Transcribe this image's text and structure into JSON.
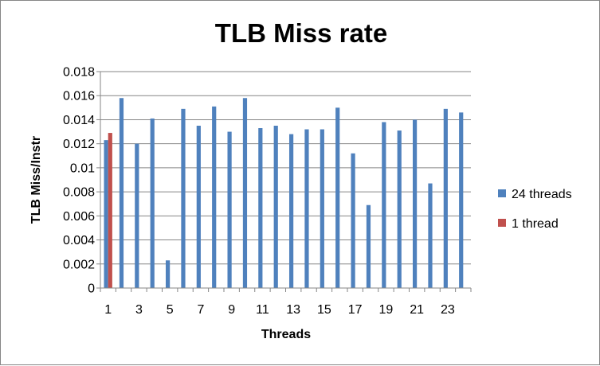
{
  "chart_data": {
    "type": "bar",
    "title": "TLB Miss rate",
    "xlabel": "Threads",
    "ylabel": "TLB Miss/Instr",
    "ylim": [
      0,
      0.018
    ],
    "yticks": [
      "0",
      "0.002",
      "0.004",
      "0.006",
      "0.008",
      "0.01",
      "0.012",
      "0.014",
      "0.016",
      "0.018"
    ],
    "categories": [
      "1",
      "2",
      "3",
      "4",
      "5",
      "6",
      "7",
      "8",
      "9",
      "10",
      "11",
      "12",
      "13",
      "14",
      "15",
      "16",
      "17",
      "18",
      "19",
      "20",
      "21",
      "22",
      "23",
      "24"
    ],
    "xtick_labels": [
      "1",
      "",
      "3",
      "",
      "5",
      "",
      "7",
      "",
      "9",
      "",
      "11",
      "",
      "13",
      "",
      "15",
      "",
      "17",
      "",
      "19",
      "",
      "21",
      "",
      "23",
      ""
    ],
    "grid": "horizontal",
    "legend_position": "right",
    "series": [
      {
        "name": "24 threads",
        "color": "#4f81bd",
        "values": [
          0.0123,
          0.0158,
          0.012,
          0.0141,
          0.0023,
          0.0149,
          0.0135,
          0.0151,
          0.013,
          0.0158,
          0.0133,
          0.0135,
          0.0128,
          0.0132,
          0.0132,
          0.015,
          0.0112,
          0.0069,
          0.0138,
          0.0131,
          0.014,
          0.0087,
          0.0149,
          0.0146
        ]
      },
      {
        "name": "1 thread",
        "color": "#c0504d",
        "values": [
          0.0129,
          null,
          null,
          null,
          null,
          null,
          null,
          null,
          null,
          null,
          null,
          null,
          null,
          null,
          null,
          null,
          null,
          null,
          null,
          null,
          null,
          null,
          null,
          null
        ]
      }
    ]
  }
}
